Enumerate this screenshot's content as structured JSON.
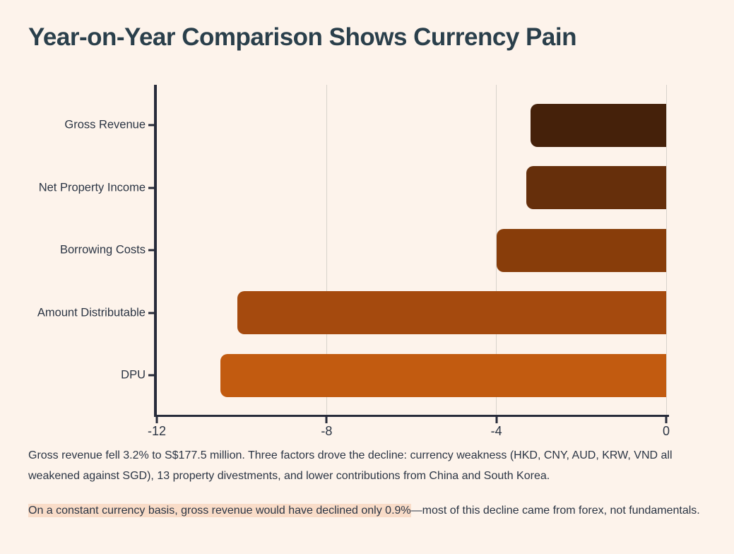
{
  "page": {
    "title": "Year-on-Year Comparison Shows Currency Pain",
    "background_color": "#fdf3eb",
    "title_color": "#2a3f4b",
    "text_color": "#2b3544"
  },
  "chart_data": {
    "type": "bar",
    "orientation": "horizontal",
    "title": "Year-on-Year Comparison Shows Currency Pain",
    "categories": [
      "Gross Revenue",
      "Net Property Income",
      "Borrowing Costs",
      "Amount Distributable",
      "DPU"
    ],
    "values": [
      -3.2,
      -3.3,
      -4.0,
      -10.1,
      -10.5
    ],
    "value_unit": "% year-on-year change",
    "bar_colors": [
      "#45210a",
      "#662f0b",
      "#883d0a",
      "#a54a0e",
      "#c25b10"
    ],
    "xlim": [
      -12,
      0
    ],
    "x_ticks": [
      -12,
      -8,
      -4,
      0
    ],
    "x_tick_labels": [
      "-12",
      "-8",
      "-4",
      "0"
    ],
    "grid": "vertical",
    "grid_color": "#d8d3cc",
    "axis_color": "#272b3a",
    "legend": "none"
  },
  "notes": {
    "paragraph1": "Gross revenue fell 3.2% to S$177.5 million. Three factors drove the decline: currency weakness (HKD, CNY, AUD, KRW, VND all weakened against SGD), 13 property divestments, and lower contributions from China and South Korea.",
    "paragraph2_highlight": "On a constant currency basis, gross revenue would have declined only 0.9%",
    "paragraph2_rest": "—most of this decline came from forex, not fundamentals.",
    "highlight_color": "#f9dcc8"
  }
}
